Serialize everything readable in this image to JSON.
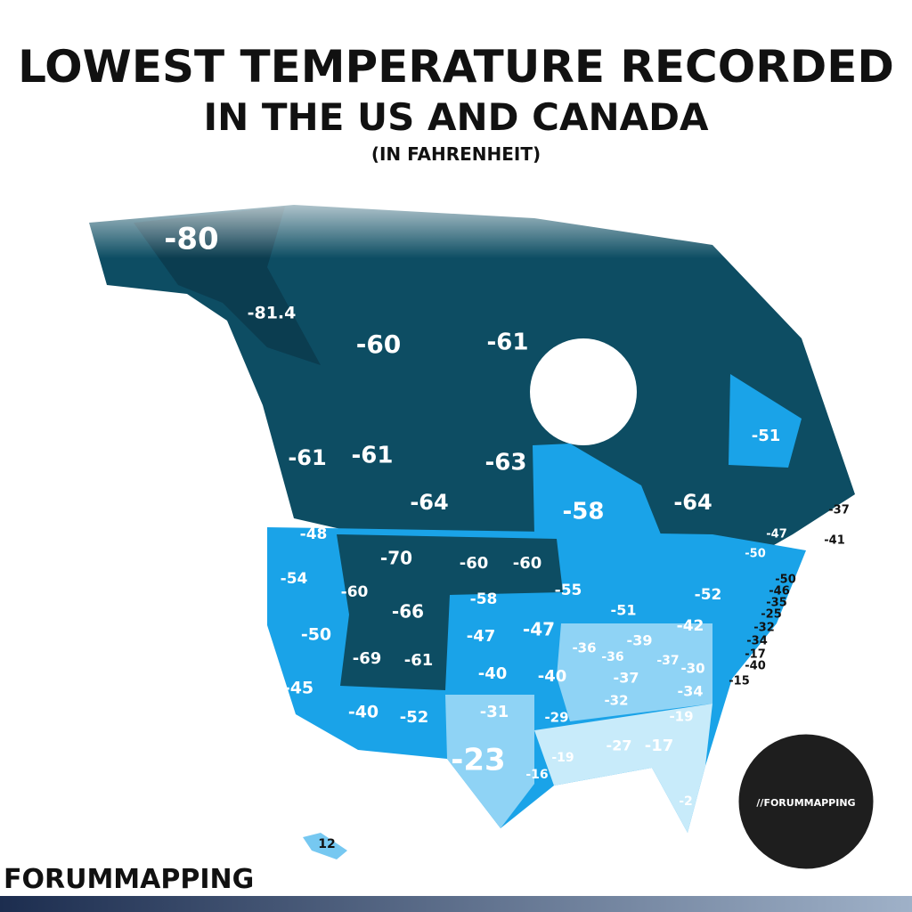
{
  "header": {
    "title_line1": "LOWEST TEMPERATURE RECORDED",
    "title_line2": "IN THE US AND CANADA",
    "subtitle": "(IN FAHRENHEIT)"
  },
  "regions": [
    {
      "label": "-80"
    },
    {
      "label": "-81.4"
    },
    {
      "label": "-60"
    },
    {
      "label": "-61"
    },
    {
      "label": "-61"
    },
    {
      "label": "-61"
    },
    {
      "label": "-64"
    },
    {
      "label": "-63"
    },
    {
      "label": "-58"
    },
    {
      "label": "-64"
    },
    {
      "label": "-51"
    },
    {
      "label": "-37"
    },
    {
      "label": "-41"
    },
    {
      "label": "-50"
    },
    {
      "label": "-46"
    },
    {
      "label": "-35"
    },
    {
      "label": "-25"
    },
    {
      "label": "-32"
    },
    {
      "label": "-34"
    },
    {
      "label": "-17"
    },
    {
      "label": "-40"
    },
    {
      "label": "-15"
    },
    {
      "label": "-48"
    },
    {
      "label": "-54"
    },
    {
      "label": "-60"
    },
    {
      "label": "-70"
    },
    {
      "label": "-60"
    },
    {
      "label": "-60"
    },
    {
      "label": "-66"
    },
    {
      "label": "-58"
    },
    {
      "label": "-50"
    },
    {
      "label": "-47"
    },
    {
      "label": "-47"
    },
    {
      "label": "-55"
    },
    {
      "label": "-51"
    },
    {
      "label": "-47"
    },
    {
      "label": "-50"
    },
    {
      "label": "-52"
    },
    {
      "label": "-42"
    },
    {
      "label": "-69"
    },
    {
      "label": "-61"
    },
    {
      "label": "-40"
    },
    {
      "label": "-40"
    },
    {
      "label": "-36"
    },
    {
      "label": "-36"
    },
    {
      "label": "-39"
    },
    {
      "label": "-37"
    },
    {
      "label": "-30"
    },
    {
      "label": "-37"
    },
    {
      "label": "-34"
    },
    {
      "label": "-32"
    },
    {
      "label": "-45"
    },
    {
      "label": "-40"
    },
    {
      "label": "-52"
    },
    {
      "label": "-31"
    },
    {
      "label": "-29"
    },
    {
      "label": "-23"
    },
    {
      "label": "-19"
    },
    {
      "label": "-19"
    },
    {
      "label": "-27"
    },
    {
      "label": "-17"
    },
    {
      "label": "-16"
    },
    {
      "label": "-2"
    },
    {
      "label": "12"
    }
  ],
  "footer": {
    "brand": "FORUMMAPPING"
  },
  "badge": {
    "text": "//FORUMMAPPING"
  }
}
